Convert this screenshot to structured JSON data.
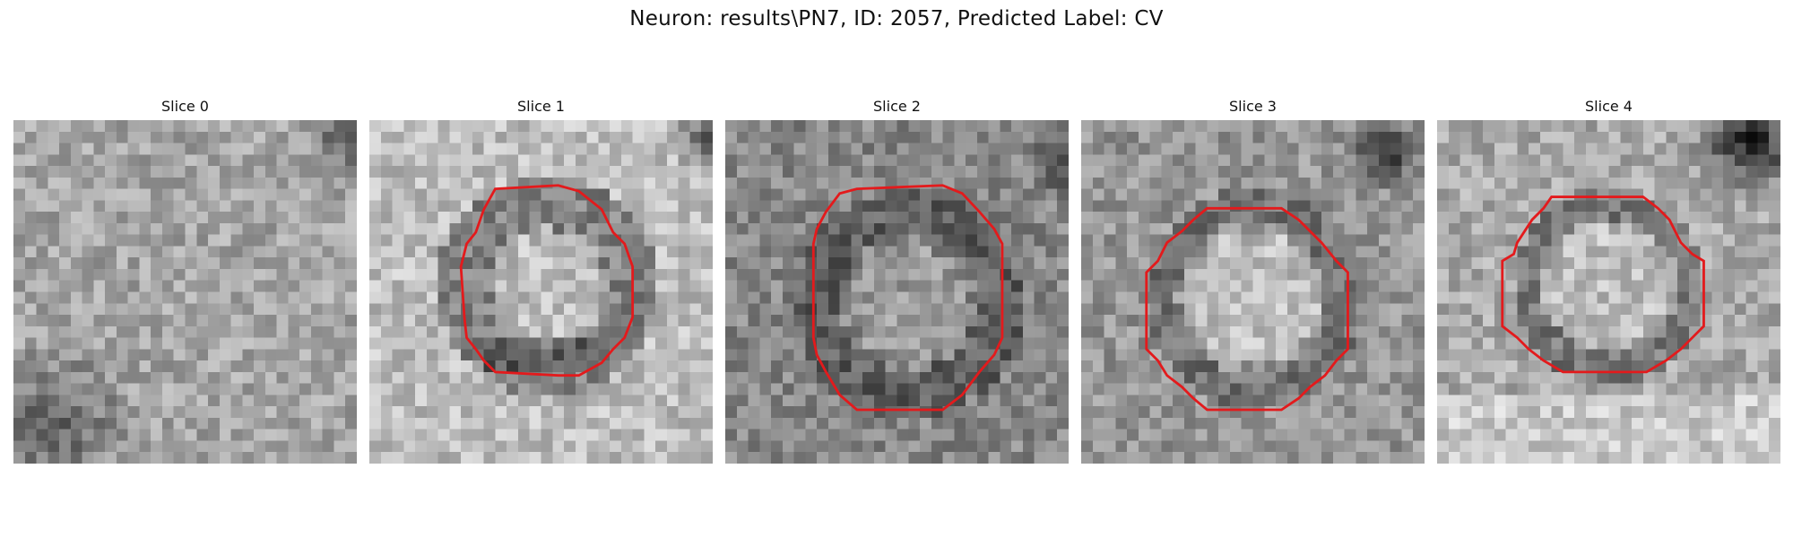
{
  "figure": {
    "title": "Neuron: results\\PN7, ID: 2057, Predicted Label: CV"
  },
  "panels": [
    {
      "label": "Slice 0",
      "has_contour": false,
      "contour_color": "#e31a1c",
      "texture": "slice0"
    },
    {
      "label": "Slice 1",
      "has_contour": true,
      "contour_color": "#e31a1c",
      "texture": "slice1"
    },
    {
      "label": "Slice 2",
      "has_contour": true,
      "contour_color": "#e31a1c",
      "texture": "slice2"
    },
    {
      "label": "Slice 3",
      "has_contour": true,
      "contour_color": "#e31a1c",
      "texture": "slice3"
    },
    {
      "label": "Slice 4",
      "has_contour": true,
      "contour_color": "#e31a1c",
      "texture": "slice4"
    }
  ]
}
